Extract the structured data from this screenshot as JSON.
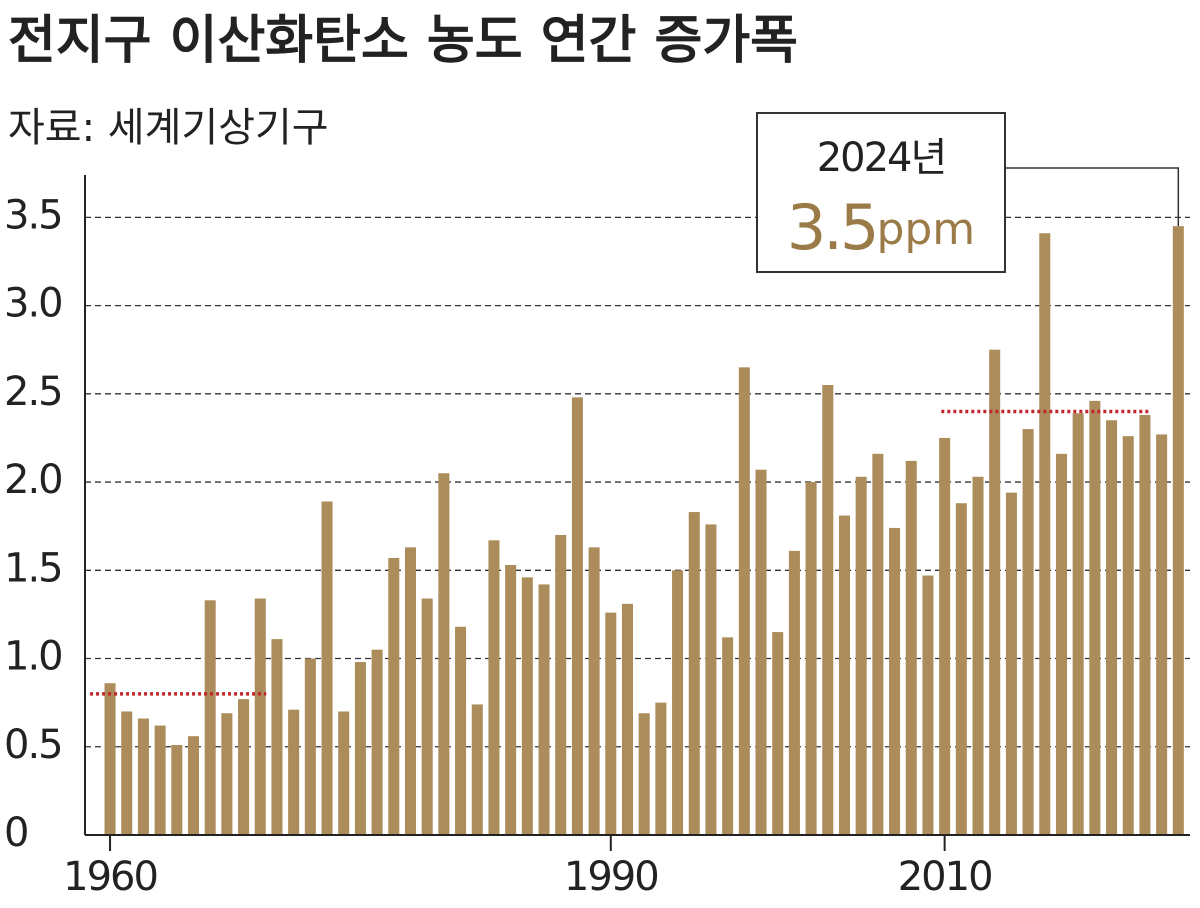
{
  "chart_data": {
    "type": "bar",
    "title": "전지구 이산화탄소 농도 연간 증가폭",
    "subtitle": "자료: 세계기상기구",
    "x": [
      1960,
      1961,
      1962,
      1963,
      1964,
      1965,
      1966,
      1967,
      1968,
      1969,
      1970,
      1971,
      1972,
      1973,
      1974,
      1975,
      1976,
      1977,
      1978,
      1979,
      1980,
      1981,
      1982,
      1983,
      1984,
      1985,
      1986,
      1987,
      1988,
      1989,
      1990,
      1991,
      1992,
      1993,
      1994,
      1995,
      1996,
      1997,
      1998,
      1999,
      2000,
      2001,
      2002,
      2003,
      2004,
      2005,
      2006,
      2007,
      2008,
      2009,
      2010,
      2011,
      2012,
      2013,
      2014,
      2015,
      2016,
      2017,
      2018,
      2019,
      2020,
      2021,
      2022,
      2023,
      2024
    ],
    "values": [
      0.86,
      0.7,
      0.66,
      0.62,
      0.51,
      0.56,
      1.33,
      0.69,
      0.77,
      1.34,
      1.11,
      0.71,
      1.0,
      1.89,
      0.7,
      0.98,
      1.05,
      1.57,
      1.63,
      1.34,
      2.05,
      1.18,
      0.74,
      1.67,
      1.53,
      1.46,
      1.42,
      1.7,
      2.48,
      1.63,
      1.26,
      1.31,
      0.69,
      0.75,
      1.5,
      1.83,
      1.76,
      1.12,
      2.65,
      2.07,
      1.15,
      1.61,
      2.0,
      2.55,
      1.81,
      2.03,
      2.16,
      1.74,
      2.12,
      1.47,
      2.25,
      1.88,
      2.03,
      2.75,
      1.94,
      2.3,
      3.41,
      2.16,
      2.39,
      2.46,
      2.35,
      2.26,
      2.38,
      2.27,
      3.45
    ],
    "color": "#ab8c5a",
    "xlim": [
      1958.5,
      2024.7
    ],
    "xticks": [
      1960,
      1990,
      2010
    ],
    "ylim": [
      0,
      3.74
    ],
    "yticks": [
      0,
      0.5,
      {
        "value": 1,
        "label": "1.0"
      },
      1.5,
      {
        "value": 2,
        "label": "2.0"
      },
      2.5,
      {
        "value": 3,
        "label": "3.0"
      },
      3.5
    ],
    "grid": true,
    "reference_lines": [
      {
        "value": 0.8,
        "from": 1960,
        "to": 1969,
        "color": "#c0282d"
      },
      {
        "value": 2.4,
        "from": 2011,
        "to": 2022,
        "color": "#c0282d"
      }
    ],
    "annotation": {
      "label": "2024년",
      "value_text": "3.5",
      "unit": "ppm",
      "x": 2024,
      "color": "#9a7b48"
    }
  }
}
